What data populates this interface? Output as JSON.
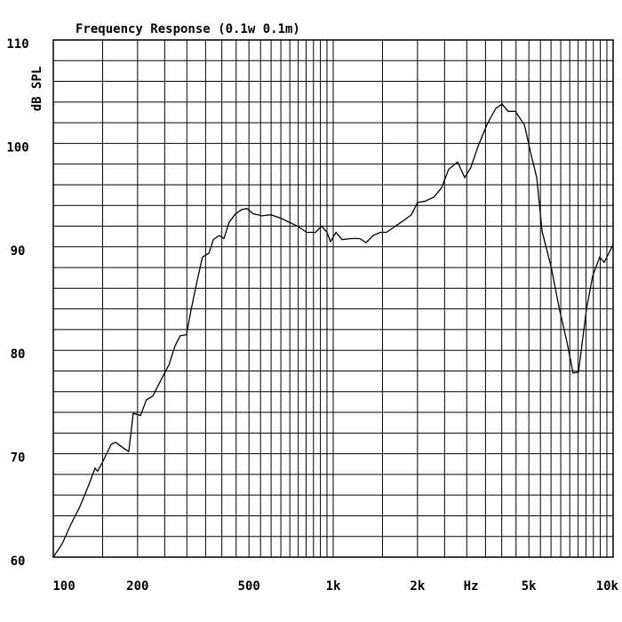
{
  "chart_data": {
    "type": "line",
    "title": "Frequency Response  (0.1w 0.1m)",
    "y_label": "dB SPL",
    "x_label": "Hz",
    "xscale": "log",
    "grid": true,
    "color": "#000000",
    "xlim": [
      100,
      10000
    ],
    "xticks": [
      100,
      200,
      500,
      {
        "value": 1000,
        "label": "1k"
      },
      {
        "value": 2000,
        "label": "2k"
      },
      {
        "value": 5000,
        "label": "5k"
      },
      {
        "value": 10000,
        "label": "10k"
      }
    ],
    "x_minor_ticks": [
      150,
      250,
      300,
      350,
      400,
      450,
      550,
      600,
      650,
      700,
      750,
      800,
      850,
      900,
      950,
      1500,
      2500,
      3000,
      3500,
      4000,
      4500,
      5500,
      6000,
      6500,
      7000,
      7500,
      8000,
      8500,
      9000,
      9500
    ],
    "ylim": [
      60,
      110
    ],
    "yticks": [
      60,
      70,
      80,
      90,
      100,
      110
    ],
    "y_minor_ticks": [
      62,
      64,
      66,
      68,
      72,
      74,
      76,
      78,
      82,
      84,
      86,
      88,
      92,
      94,
      96,
      98,
      102,
      104,
      106,
      108
    ],
    "x": [
      100,
      107.6,
      115.7,
      124.5,
      134,
      141,
      144,
      150,
      161,
      167,
      179,
      186,
      193,
      205,
      215,
      227,
      240,
      259,
      272,
      284,
      299,
      310,
      327,
      341,
      360,
      373,
      392,
      407,
      425,
      448,
      471,
      492,
      518,
      557,
      600,
      645,
      694,
      746,
      804,
      865,
      909,
      950,
      978,
      1023,
      1076,
      1157,
      1245,
      1310,
      1389,
      1472,
      1549,
      1668,
      1795,
      1902,
      2003,
      2123,
      2285,
      2438,
      2585,
      2782,
      2950,
      3105,
      3290,
      3540,
      3810,
      4010,
      4220,
      4475,
      4820,
      5105,
      5335,
      5575,
      6000,
      6450,
      6840,
      7195,
      7520,
      8035,
      8455,
      8955,
      9290,
      10000
    ],
    "values": [
      60.0,
      61.3,
      63.2,
      64.9,
      67.0,
      68.6,
      68.3,
      69.2,
      70.9,
      71.1,
      70.5,
      70.2,
      73.9,
      73.7,
      75.2,
      75.6,
      76.9,
      78.6,
      80.4,
      81.4,
      81.5,
      83.8,
      86.8,
      89.0,
      89.4,
      90.7,
      91.1,
      90.8,
      92.4,
      93.2,
      93.6,
      93.7,
      93.2,
      93.0,
      93.1,
      92.8,
      92.4,
      92.0,
      91.4,
      91.4,
      92.0,
      91.4,
      90.5,
      91.4,
      90.7,
      90.8,
      90.8,
      90.4,
      91.1,
      91.4,
      91.4,
      92.0,
      92.6,
      93.1,
      94.3,
      94.4,
      94.8,
      95.7,
      97.5,
      98.2,
      96.7,
      97.7,
      99.7,
      101.8,
      103.4,
      103.8,
      103.1,
      103.1,
      101.8,
      98.8,
      96.7,
      91.5,
      88.1,
      83.8,
      80.8,
      77.8,
      77.9,
      84.0,
      87.2,
      89.0,
      88.5,
      90.2
    ]
  }
}
